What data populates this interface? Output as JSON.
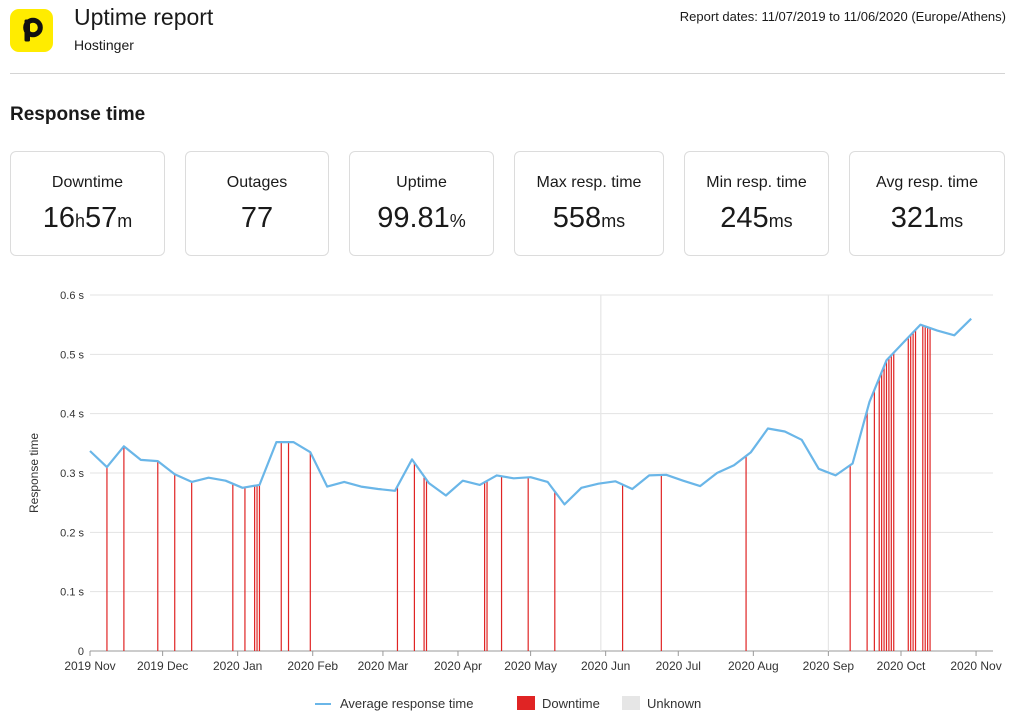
{
  "header": {
    "title": "Uptime report",
    "subtitle": "Hostinger",
    "report_dates": "Report dates: 11/07/2019 to 11/06/2020 (Europe/Athens)",
    "logo_letter": "p",
    "logo_color": "#ffec00"
  },
  "section": {
    "title": "Response time"
  },
  "stats": [
    {
      "label": "Downtime",
      "parts": [
        {
          "text": "16",
          "unit": false
        },
        {
          "text": "h",
          "unit": true
        },
        {
          "text": "57",
          "unit": false
        },
        {
          "text": "m",
          "unit": true
        }
      ]
    },
    {
      "label": "Outages",
      "parts": [
        {
          "text": "77",
          "unit": false
        }
      ]
    },
    {
      "label": "Uptime",
      "parts": [
        {
          "text": "99.81",
          "unit": false
        },
        {
          "text": "%",
          "unit": true
        }
      ]
    },
    {
      "label": "Max resp. time",
      "parts": [
        {
          "text": "558",
          "unit": false
        },
        {
          "text": "ms",
          "unit": true
        }
      ]
    },
    {
      "label": "Min resp. time",
      "parts": [
        {
          "text": "245",
          "unit": false
        },
        {
          "text": "ms",
          "unit": true
        }
      ]
    },
    {
      "label": "Avg resp. time",
      "parts": [
        {
          "text": "321",
          "unit": false
        },
        {
          "text": "ms",
          "unit": true
        }
      ]
    }
  ],
  "chart_data": {
    "type": "line",
    "title": "",
    "xlabel": "",
    "ylabel": "Response time",
    "ylim": [
      0,
      0.6
    ],
    "y_ticks": [
      0,
      0.1,
      0.2,
      0.3,
      0.4,
      0.5,
      0.6
    ],
    "y_tick_labels": [
      "0",
      "0.1 s",
      "0.2 s",
      "0.3 s",
      "0.4 s",
      "0.5 s",
      "0.6 s"
    ],
    "x_range": [
      "2019-11-01",
      "2020-11-08"
    ],
    "x_ticks": [
      {
        "label": "2019 Nov",
        "date": "2019-11-01"
      },
      {
        "label": "2019 Dec",
        "date": "2019-12-01"
      },
      {
        "label": "2020 Jan",
        "date": "2020-01-01"
      },
      {
        "label": "2020 Feb",
        "date": "2020-02-01"
      },
      {
        "label": "2020 Mar",
        "date": "2020-03-01"
      },
      {
        "label": "2020 Apr",
        "date": "2020-04-01"
      },
      {
        "label": "2020 May",
        "date": "2020-05-01"
      },
      {
        "label": "2020 Jun",
        "date": "2020-06-01"
      },
      {
        "label": "2020 Jul",
        "date": "2020-07-01"
      },
      {
        "label": "2020 Aug",
        "date": "2020-08-01"
      },
      {
        "label": "2020 Sep",
        "date": "2020-09-01"
      },
      {
        "label": "2020 Oct",
        "date": "2020-10-01"
      },
      {
        "label": "2020 Nov",
        "date": "2020-11-01"
      }
    ],
    "grid": true,
    "legend_position": "bottom",
    "series": [
      {
        "name": "Average response time",
        "color": "#6ab6e8",
        "points": [
          [
            "2019-11-01",
            0.337
          ],
          [
            "2019-11-08",
            0.31
          ],
          [
            "2019-11-15",
            0.345
          ],
          [
            "2019-11-22",
            0.322
          ],
          [
            "2019-11-29",
            0.32
          ],
          [
            "2019-12-06",
            0.298
          ],
          [
            "2019-12-13",
            0.285
          ],
          [
            "2019-12-20",
            0.292
          ],
          [
            "2019-12-27",
            0.287
          ],
          [
            "2020-01-03",
            0.275
          ],
          [
            "2020-01-10",
            0.28
          ],
          [
            "2020-01-17",
            0.352
          ],
          [
            "2020-01-24",
            0.352
          ],
          [
            "2020-01-31",
            0.335
          ],
          [
            "2020-02-07",
            0.277
          ],
          [
            "2020-02-14",
            0.285
          ],
          [
            "2020-02-21",
            0.277
          ],
          [
            "2020-02-28",
            0.273
          ],
          [
            "2020-03-06",
            0.27
          ],
          [
            "2020-03-13",
            0.323
          ],
          [
            "2020-03-20",
            0.283
          ],
          [
            "2020-03-27",
            0.262
          ],
          [
            "2020-04-03",
            0.287
          ],
          [
            "2020-04-10",
            0.28
          ],
          [
            "2020-04-17",
            0.296
          ],
          [
            "2020-04-24",
            0.291
          ],
          [
            "2020-05-01",
            0.293
          ],
          [
            "2020-05-08",
            0.285
          ],
          [
            "2020-05-15",
            0.247
          ],
          [
            "2020-05-22",
            0.275
          ],
          [
            "2020-05-29",
            0.282
          ],
          [
            "2020-06-05",
            0.286
          ],
          [
            "2020-06-12",
            0.273
          ],
          [
            "2020-06-19",
            0.296
          ],
          [
            "2020-06-26",
            0.297
          ],
          [
            "2020-07-03",
            0.287
          ],
          [
            "2020-07-10",
            0.278
          ],
          [
            "2020-07-17",
            0.3
          ],
          [
            "2020-07-24",
            0.313
          ],
          [
            "2020-07-31",
            0.335
          ],
          [
            "2020-08-07",
            0.375
          ],
          [
            "2020-08-14",
            0.37
          ],
          [
            "2020-08-21",
            0.356
          ],
          [
            "2020-08-28",
            0.307
          ],
          [
            "2020-09-04",
            0.296
          ],
          [
            "2020-09-11",
            0.316
          ],
          [
            "2020-09-18",
            0.42
          ],
          [
            "2020-09-25",
            0.49
          ],
          [
            "2020-10-02",
            0.52
          ],
          [
            "2020-10-09",
            0.55
          ],
          [
            "2020-10-16",
            0.54
          ],
          [
            "2020-10-23",
            0.532
          ],
          [
            "2020-10-30",
            0.56
          ]
        ]
      },
      {
        "name": "Downtime",
        "color": "#e02424",
        "dates": [
          "2019-11-08",
          "2019-11-15",
          "2019-11-29",
          "2019-12-06",
          "2019-12-13",
          "2019-12-30",
          "2020-01-04",
          "2020-01-08",
          "2020-01-09",
          "2020-01-10",
          "2020-01-19",
          "2020-01-22",
          "2020-01-31",
          "2020-03-07",
          "2020-03-14",
          "2020-03-18",
          "2020-03-19",
          "2020-04-12",
          "2020-04-13",
          "2020-04-19",
          "2020-04-30",
          "2020-05-11",
          "2020-06-08",
          "2020-06-24",
          "2020-07-29",
          "2020-09-10",
          "2020-09-17",
          "2020-09-20",
          "2020-09-22",
          "2020-09-23",
          "2020-09-24",
          "2020-09-25",
          "2020-09-26",
          "2020-09-27",
          "2020-09-28",
          "2020-10-04",
          "2020-10-05",
          "2020-10-06",
          "2020-10-07",
          "2020-10-10",
          "2020-10-11",
          "2020-10-12",
          "2020-10-13"
        ]
      },
      {
        "name": "Unknown",
        "color": "#e6e6e6",
        "dates": [
          "2020-05-30",
          "2020-09-01"
        ]
      }
    ]
  }
}
